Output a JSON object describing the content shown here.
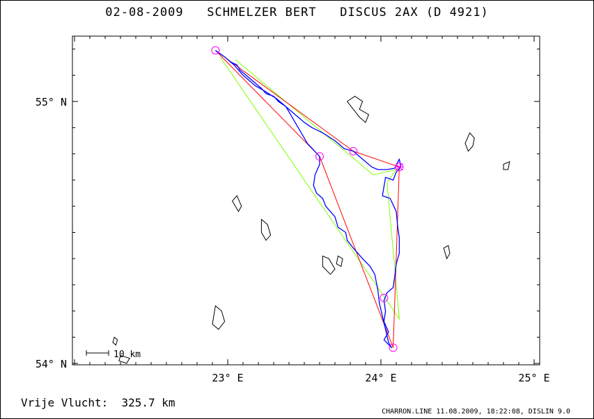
{
  "header": {
    "title": "02-08-2009   SCHMELZER BERT   DISCUS 2AX (D 4921)"
  },
  "summary": {
    "distance_text": "Vrije Vlucht:  325.7 km"
  },
  "footer": {
    "credits": "CHARRON.LINE 11.08.2009, 18:22:08, DISLIN 9.0"
  },
  "chart_data": {
    "type": "map",
    "title": "02-08-2009   SCHMELZER BERT   DISCUS 2AX (D 4921)",
    "xlim": [
      22.0,
      25.0
    ],
    "ylim": [
      54.0,
      55.2
    ],
    "x_ticks": [
      {
        "value": 23.0,
        "label": "23° E"
      },
      {
        "value": 24.0,
        "label": "24° E"
      },
      {
        "value": 25.0,
        "label": "25° E"
      }
    ],
    "y_ticks": [
      {
        "value": 54.0,
        "label": "54° N"
      },
      {
        "value": 55.0,
        "label": "55° N"
      }
    ],
    "scale_bar": {
      "label": "10 km",
      "length_km": 10
    },
    "colors": {
      "flight_track": "#0000ff",
      "task_route": "#ff0000",
      "alternate_route": "#80ff00",
      "turnpoints": "#ff00ff",
      "lakes": "#000000"
    },
    "task_route": [
      [
        22.92,
        55.195
      ],
      [
        23.82,
        54.81
      ],
      [
        24.12,
        54.75
      ],
      [
        24.08,
        54.06
      ],
      [
        23.6,
        54.79
      ],
      [
        22.92,
        55.195
      ]
    ],
    "alternate_route": [
      [
        23.05,
        55.16
      ],
      [
        23.95,
        54.72
      ],
      [
        24.1,
        54.74
      ],
      [
        24.04,
        54.69
      ],
      [
        24.12,
        54.17
      ],
      [
        22.95,
        55.17
      ]
    ],
    "turnpoints": [
      [
        22.92,
        55.195
      ],
      [
        23.6,
        54.79
      ],
      [
        23.82,
        54.81
      ],
      [
        24.12,
        54.75
      ],
      [
        24.02,
        54.25
      ],
      [
        24.08,
        54.06
      ]
    ],
    "start_marker": [
      24.12,
      54.75
    ],
    "flight_track": [
      [
        22.92,
        55.195
      ],
      [
        22.98,
        55.17
      ],
      [
        23.02,
        55.15
      ],
      [
        23.06,
        55.14
      ],
      [
        23.08,
        55.12
      ],
      [
        23.1,
        55.11
      ],
      [
        23.14,
        55.09
      ],
      [
        23.18,
        55.07
      ],
      [
        23.22,
        55.05
      ],
      [
        23.25,
        55.03
      ],
      [
        23.3,
        55.02
      ],
      [
        23.33,
        55.0
      ],
      [
        23.38,
        54.98
      ],
      [
        23.42,
        54.96
      ],
      [
        23.46,
        54.94
      ],
      [
        23.5,
        54.92
      ],
      [
        23.55,
        54.9
      ],
      [
        23.62,
        54.88
      ],
      [
        23.7,
        54.85
      ],
      [
        23.76,
        54.82
      ],
      [
        23.82,
        54.81
      ],
      [
        23.86,
        54.79
      ],
      [
        23.9,
        54.77
      ],
      [
        23.94,
        54.75
      ],
      [
        23.98,
        54.74
      ],
      [
        24.04,
        54.74
      ],
      [
        24.09,
        54.745
      ],
      [
        24.12,
        54.78
      ],
      [
        24.13,
        54.75
      ],
      [
        24.1,
        54.73
      ],
      [
        24.08,
        54.7
      ],
      [
        24.03,
        54.71
      ],
      [
        24.01,
        54.64
      ],
      [
        24.06,
        54.63
      ],
      [
        24.1,
        54.58
      ],
      [
        24.11,
        54.52
      ],
      [
        24.12,
        54.48
      ],
      [
        24.12,
        54.42
      ],
      [
        24.1,
        54.38
      ],
      [
        24.09,
        54.33
      ],
      [
        24.08,
        54.29
      ],
      [
        24.04,
        54.27
      ],
      [
        24.02,
        54.24
      ],
      [
        24.03,
        54.2
      ],
      [
        24.02,
        54.16
      ],
      [
        24.05,
        54.12
      ],
      [
        24.02,
        54.09
      ],
      [
        24.07,
        54.06
      ],
      [
        24.05,
        54.08
      ],
      [
        24.03,
        54.13
      ],
      [
        24.01,
        54.18
      ],
      [
        23.99,
        54.23
      ],
      [
        23.98,
        54.28
      ],
      [
        23.96,
        54.34
      ],
      [
        23.93,
        54.37
      ],
      [
        23.88,
        54.4
      ],
      [
        23.82,
        54.44
      ],
      [
        23.78,
        54.47
      ],
      [
        23.77,
        54.5
      ],
      [
        23.72,
        54.52
      ],
      [
        23.7,
        54.56
      ],
      [
        23.67,
        54.58
      ],
      [
        23.64,
        54.6
      ],
      [
        23.62,
        54.63
      ],
      [
        23.58,
        54.65
      ],
      [
        23.56,
        54.68
      ],
      [
        23.57,
        54.72
      ],
      [
        23.6,
        54.76
      ],
      [
        23.6,
        54.79
      ],
      [
        23.52,
        54.84
      ],
      [
        23.48,
        54.88
      ],
      [
        23.44,
        54.92
      ],
      [
        23.42,
        54.94
      ],
      [
        23.38,
        54.98
      ],
      [
        23.32,
        55.01
      ],
      [
        23.24,
        55.04
      ],
      [
        23.18,
        55.06
      ],
      [
        23.1,
        55.1
      ],
      [
        23.04,
        55.14
      ],
      [
        22.98,
        55.17
      ],
      [
        22.93,
        55.19
      ]
    ],
    "lakes": [
      [
        [
          23.78,
          55.0
        ],
        [
          23.83,
          55.02
        ],
        [
          23.88,
          55.0
        ],
        [
          23.86,
          54.97
        ],
        [
          23.92,
          54.95
        ],
        [
          23.9,
          54.92
        ],
        [
          23.86,
          54.94
        ],
        [
          23.82,
          54.97
        ],
        [
          23.78,
          55.0
        ]
      ],
      [
        [
          24.58,
          54.88
        ],
        [
          24.61,
          54.86
        ],
        [
          24.6,
          54.83
        ],
        [
          24.57,
          54.81
        ],
        [
          24.55,
          54.84
        ],
        [
          24.58,
          54.88
        ]
      ],
      [
        [
          24.8,
          54.76
        ],
        [
          24.84,
          54.77
        ],
        [
          24.83,
          54.74
        ],
        [
          24.8,
          54.74
        ],
        [
          24.8,
          54.76
        ]
      ],
      [
        [
          23.03,
          54.62
        ],
        [
          23.06,
          54.64
        ],
        [
          23.09,
          54.6
        ],
        [
          23.07,
          54.58
        ],
        [
          23.03,
          54.62
        ]
      ],
      [
        [
          23.22,
          54.55
        ],
        [
          23.26,
          54.53
        ],
        [
          23.28,
          54.49
        ],
        [
          23.25,
          54.47
        ],
        [
          23.22,
          54.5
        ],
        [
          23.22,
          54.55
        ]
      ],
      [
        [
          24.41,
          54.44
        ],
        [
          24.44,
          54.45
        ],
        [
          24.45,
          54.42
        ],
        [
          24.43,
          54.4
        ],
        [
          24.41,
          54.44
        ]
      ],
      [
        [
          23.62,
          54.41
        ],
        [
          23.66,
          54.4
        ],
        [
          23.7,
          54.36
        ],
        [
          23.67,
          54.34
        ],
        [
          23.62,
          54.37
        ],
        [
          23.62,
          54.41
        ]
      ],
      [
        [
          23.72,
          54.41
        ],
        [
          23.75,
          54.4
        ],
        [
          23.74,
          54.37
        ],
        [
          23.71,
          54.38
        ],
        [
          23.72,
          54.41
        ]
      ],
      [
        [
          22.92,
          54.22
        ],
        [
          22.96,
          54.2
        ],
        [
          22.98,
          54.16
        ],
        [
          22.94,
          54.13
        ],
        [
          22.9,
          54.15
        ],
        [
          22.92,
          54.22
        ]
      ],
      [
        [
          22.26,
          54.1
        ],
        [
          22.28,
          54.09
        ],
        [
          22.27,
          54.07
        ],
        [
          22.25,
          54.08
        ],
        [
          22.26,
          54.1
        ]
      ],
      [
        [
          22.3,
          54.03
        ],
        [
          22.36,
          54.02
        ],
        [
          22.34,
          54.0
        ],
        [
          22.29,
          54.01
        ],
        [
          22.3,
          54.03
        ]
      ]
    ]
  }
}
